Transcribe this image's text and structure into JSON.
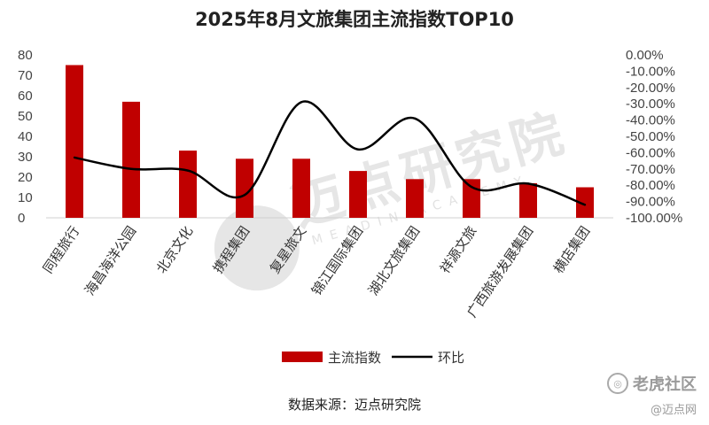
{
  "chart_data": {
    "type": "bar",
    "title": "2025年8月文旅集团主流指数TOP10",
    "categories": [
      "同程旅行",
      "海昌海洋公园",
      "北京文化",
      "携程集团",
      "复星旅文",
      "锦江国际集团",
      "湖北文旅集团",
      "祥源文旅",
      "广西旅游发展集团",
      "横店集团"
    ],
    "series": [
      {
        "name": "主流指数",
        "type": "bar",
        "axis": "left",
        "color": "#c00000",
        "values": [
          75,
          57,
          33,
          29,
          29,
          23,
          19,
          19,
          17,
          15
        ]
      },
      {
        "name": "环比",
        "type": "line",
        "axis": "right",
        "color": "#000000",
        "smooth": true,
        "values": [
          -63,
          -70,
          -71,
          -86,
          -29,
          -58,
          -39,
          -81,
          -79,
          -92
        ]
      }
    ],
    "left_axis": {
      "min": 0,
      "max": 80,
      "ticks": [
        0,
        10,
        20,
        30,
        40,
        50,
        60,
        70,
        80
      ]
    },
    "right_axis": {
      "min": -100,
      "max": 0,
      "ticks": [
        "0.00%",
        "-10.00%",
        "-20.00%",
        "-30.00%",
        "-40.00%",
        "-50.00%",
        "-60.00%",
        "-70.00%",
        "-80.00%",
        "-90.00%",
        "-100.00%"
      ]
    },
    "legend_position": "bottom",
    "grid": false
  },
  "source_text": "数据来源：迈点研究院",
  "watermark": {
    "text": "迈点研究院",
    "subtext": "MEADIN ACADEMY"
  },
  "corner_brand": {
    "name": "老虎社区",
    "sub": "@迈点网",
    "icon": "tiger-logo-icon"
  }
}
